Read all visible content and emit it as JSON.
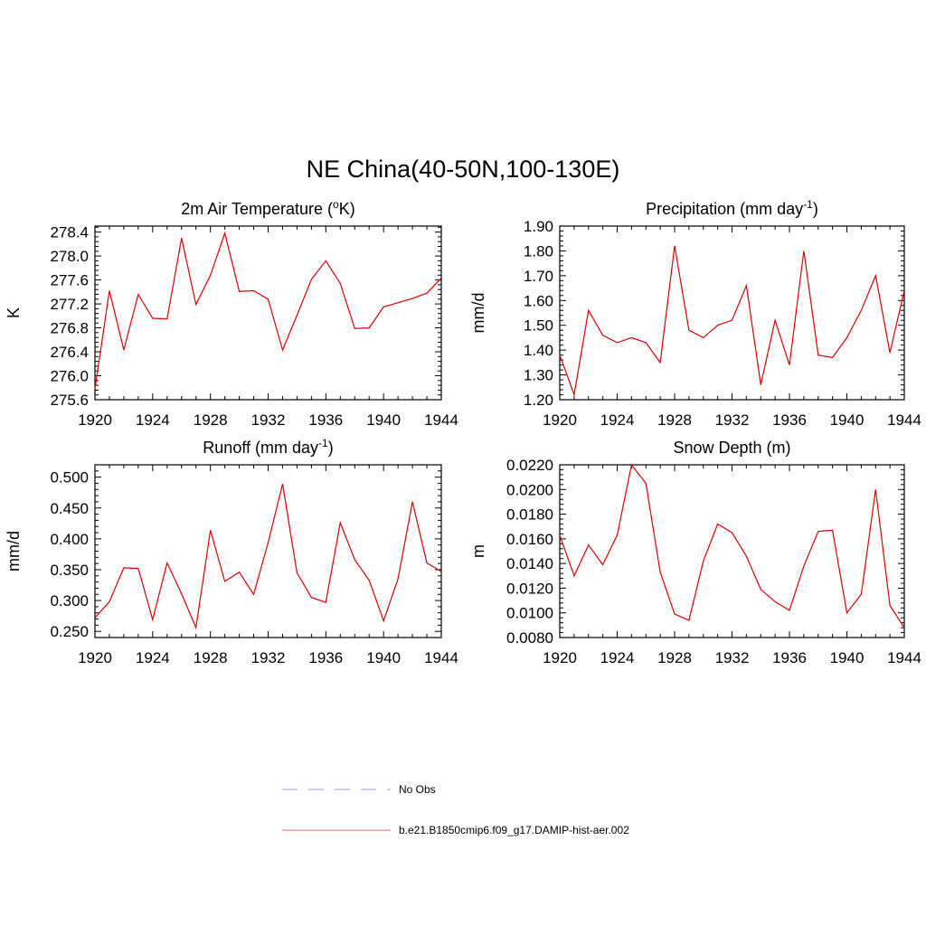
{
  "figure": {
    "title": "NE China(40-50N,100-130E)"
  },
  "legend": {
    "entries": [
      {
        "label": "No Obs",
        "color": "#9999ff",
        "dashed": true
      },
      {
        "label": "b.e21.B1850cmip6.f09_g17.DAMIP-hist-aer.002",
        "color": "#ff6666",
        "dashed": false
      }
    ]
  },
  "chart_data": [
    {
      "type": "line",
      "title": "2m Air Temperature (",
      "title_sup": "o",
      "title_end": "K)",
      "ylabel": "K",
      "xlim": [
        1920,
        1944
      ],
      "ylim": [
        275.6,
        278.5
      ],
      "yticks": [
        275.6,
        276.0,
        276.4,
        276.8,
        277.2,
        277.6,
        278.0,
        278.4
      ],
      "ytick_labels": [
        "275.6",
        "276.0",
        "276.4",
        "276.8",
        "277.2",
        "277.6",
        "278.0",
        "278.4"
      ],
      "xticks": [
        1920,
        1924,
        1928,
        1932,
        1936,
        1940,
        1944
      ],
      "xtick_labels": [
        "1920",
        "1924",
        "1928",
        "1932",
        "1936",
        "1940",
        "1944"
      ],
      "color": "#e00000",
      "x": [
        1920,
        1921,
        1922,
        1923,
        1924,
        1925,
        1926,
        1927,
        1928,
        1929,
        1930,
        1931,
        1932,
        1933,
        1934,
        1935,
        1936,
        1937,
        1938,
        1939,
        1940,
        1941,
        1942,
        1943,
        1944
      ],
      "y": [
        275.78,
        277.42,
        276.43,
        277.36,
        276.96,
        276.95,
        278.3,
        277.19,
        277.68,
        278.38,
        277.41,
        277.42,
        277.28,
        276.43,
        277.01,
        277.61,
        277.92,
        277.54,
        276.79,
        276.8,
        277.15,
        277.22,
        277.29,
        277.38,
        277.63
      ]
    },
    {
      "type": "line",
      "title": "Precipitation (mm day",
      "title_sup": "-1",
      "title_end": ")",
      "ylabel": "mm/d",
      "xlim": [
        1920,
        1944
      ],
      "ylim": [
        1.2,
        1.9
      ],
      "yticks": [
        1.2,
        1.3,
        1.4,
        1.5,
        1.6,
        1.7,
        1.8,
        1.9
      ],
      "ytick_labels": [
        "1.20",
        "1.30",
        "1.40",
        "1.50",
        "1.60",
        "1.70",
        "1.80",
        "1.90"
      ],
      "xticks": [
        1920,
        1924,
        1928,
        1932,
        1936,
        1940,
        1944
      ],
      "xtick_labels": [
        "1920",
        "1924",
        "1928",
        "1932",
        "1936",
        "1940",
        "1944"
      ],
      "color": "#e00000",
      "x": [
        1920,
        1921,
        1922,
        1923,
        1924,
        1925,
        1926,
        1927,
        1928,
        1929,
        1930,
        1931,
        1932,
        1933,
        1934,
        1935,
        1936,
        1937,
        1938,
        1939,
        1940,
        1941,
        1942,
        1943,
        1944
      ],
      "y": [
        1.38,
        1.22,
        1.56,
        1.46,
        1.43,
        1.45,
        1.43,
        1.35,
        1.82,
        1.48,
        1.45,
        1.5,
        1.52,
        1.66,
        1.26,
        1.52,
        1.34,
        1.8,
        1.38,
        1.37,
        1.45,
        1.56,
        1.7,
        1.39,
        1.64
      ]
    },
    {
      "type": "line",
      "title": "Runoff (mm day",
      "title_sup": "-1",
      "title_end": ")",
      "ylabel": "mm/d",
      "xlim": [
        1920,
        1944
      ],
      "ylim": [
        0.24,
        0.52
      ],
      "yticks": [
        0.25,
        0.3,
        0.35,
        0.4,
        0.45,
        0.5
      ],
      "ytick_labels": [
        "0.250",
        "0.300",
        "0.350",
        "0.400",
        "0.450",
        "0.500"
      ],
      "xticks": [
        1920,
        1924,
        1928,
        1932,
        1936,
        1940,
        1944
      ],
      "xtick_labels": [
        "1920",
        "1924",
        "1928",
        "1932",
        "1936",
        "1940",
        "1944"
      ],
      "color": "#e00000",
      "x": [
        1920,
        1921,
        1922,
        1923,
        1924,
        1925,
        1926,
        1927,
        1928,
        1929,
        1930,
        1931,
        1932,
        1933,
        1934,
        1935,
        1936,
        1937,
        1938,
        1939,
        1940,
        1941,
        1942,
        1943,
        1944
      ],
      "y": [
        0.272,
        0.298,
        0.353,
        0.352,
        0.269,
        0.361,
        0.311,
        0.256,
        0.414,
        0.331,
        0.346,
        0.31,
        0.394,
        0.489,
        0.345,
        0.305,
        0.297,
        0.426,
        0.366,
        0.333,
        0.267,
        0.335,
        0.46,
        0.361,
        0.347
      ]
    },
    {
      "type": "line",
      "title": "Snow Depth (m)",
      "title_sup": "",
      "title_end": "",
      "ylabel": "m",
      "xlim": [
        1920,
        1944
      ],
      "ylim": [
        0.008,
        0.022
      ],
      "yticks": [
        0.008,
        0.01,
        0.012,
        0.014,
        0.016,
        0.018,
        0.02,
        0.022
      ],
      "ytick_labels": [
        "0.0080",
        "0.0100",
        "0.0120",
        "0.0140",
        "0.0160",
        "0.0180",
        "0.0200",
        "0.0220"
      ],
      "xticks": [
        1920,
        1924,
        1928,
        1932,
        1936,
        1940,
        1944
      ],
      "xtick_labels": [
        "1920",
        "1924",
        "1928",
        "1932",
        "1936",
        "1940",
        "1944"
      ],
      "color": "#e00000",
      "x": [
        1920,
        1921,
        1922,
        1923,
        1924,
        1925,
        1926,
        1927,
        1928,
        1929,
        1930,
        1931,
        1932,
        1933,
        1934,
        1935,
        1936,
        1937,
        1938,
        1939,
        1940,
        1941,
        1942,
        1943,
        1944
      ],
      "y": [
        0.0163,
        0.013,
        0.0155,
        0.0139,
        0.0163,
        0.022,
        0.0205,
        0.0133,
        0.0099,
        0.0094,
        0.0142,
        0.0172,
        0.0165,
        0.0146,
        0.0119,
        0.0109,
        0.0102,
        0.0138,
        0.0166,
        0.0167,
        0.01,
        0.0115,
        0.02,
        0.0106,
        0.0088
      ]
    }
  ]
}
